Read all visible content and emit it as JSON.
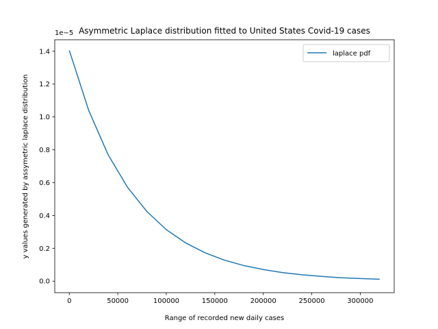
{
  "chart_data": {
    "type": "line",
    "title": "Asymmetric Laplace distribution fitted to United States Covid-19 cases",
    "xlabel": "Range of recorded new daily cases",
    "ylabel": "y values generated by assymetric laplace distribution",
    "y_offset_text": "1e−5",
    "xlim": [
      -15000,
      335000
    ],
    "ylim": [
      -0.07,
      1.47
    ],
    "xticks": [
      0,
      50000,
      100000,
      150000,
      200000,
      250000,
      300000
    ],
    "xtick_labels": [
      "0",
      "50000",
      "100000",
      "150000",
      "200000",
      "250000",
      "300000"
    ],
    "yticks": [
      0.0,
      0.2,
      0.4,
      0.6,
      0.8,
      1.0,
      1.2,
      1.4
    ],
    "ytick_labels": [
      "0.0",
      "0.2",
      "0.4",
      "0.6",
      "0.8",
      "1.0",
      "1.2",
      "1.4"
    ],
    "legend": {
      "placement": "top-right",
      "entries": [
        "laplace pdf"
      ]
    },
    "grid": false,
    "series": [
      {
        "name": "laplace pdf",
        "color": "#1f77b4",
        "x": [
          0,
          20000,
          40000,
          60000,
          80000,
          100000,
          120000,
          140000,
          160000,
          180000,
          200000,
          220000,
          240000,
          260000,
          280000,
          300000,
          320000
        ],
        "y": [
          1.405,
          1.04,
          0.77,
          0.572,
          0.424,
          0.314,
          0.233,
          0.173,
          0.128,
          0.095,
          0.071,
          0.052,
          0.039,
          0.029,
          0.021,
          0.016,
          0.012
        ]
      }
    ]
  }
}
